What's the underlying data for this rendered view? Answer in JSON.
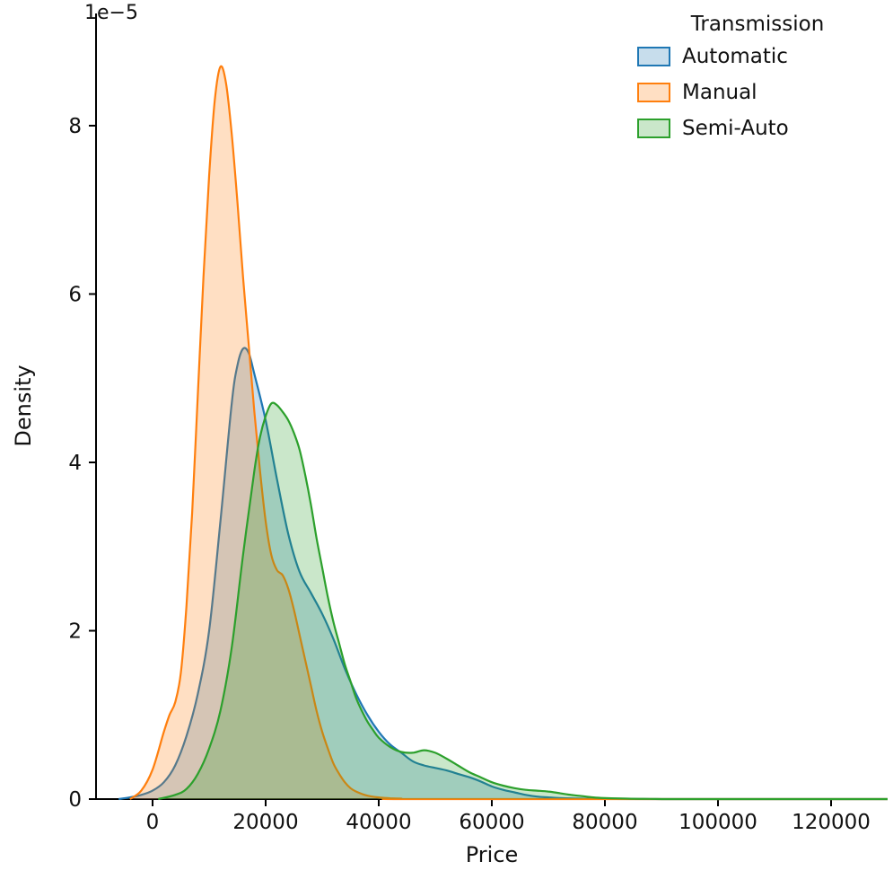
{
  "chart_data": {
    "type": "area",
    "variant": "kde-density",
    "title": "",
    "xlabel": "Price",
    "ylabel": "Density",
    "y_offset_label": "1e−5",
    "y_unit": "1e-5",
    "xlim": [
      -10000,
      130000
    ],
    "ylim": [
      0,
      9.333
    ],
    "x_ticks": [
      0,
      20000,
      40000,
      60000,
      80000,
      100000,
      120000
    ],
    "y_ticks": [
      0,
      2,
      4,
      6,
      8
    ],
    "grid": false,
    "legend": {
      "title": "Transmission",
      "position": "upper right",
      "entries": [
        "Automatic",
        "Manual",
        "Semi-Auto"
      ]
    },
    "series": [
      {
        "name": "Automatic",
        "color": "#1f77b4",
        "fill_alpha": 0.25,
        "points": [
          [
            -6000,
            0
          ],
          [
            -4000,
            0.02
          ],
          [
            -2000,
            0.05
          ],
          [
            0,
            0.1
          ],
          [
            2000,
            0.2
          ],
          [
            4000,
            0.4
          ],
          [
            6000,
            0.75
          ],
          [
            8000,
            1.25
          ],
          [
            10000,
            2.0
          ],
          [
            12000,
            3.3
          ],
          [
            14000,
            4.7
          ],
          [
            15000,
            5.15
          ],
          [
            16000,
            5.35
          ],
          [
            17000,
            5.3
          ],
          [
            18000,
            5.05
          ],
          [
            20000,
            4.5
          ],
          [
            22000,
            3.8
          ],
          [
            24000,
            3.15
          ],
          [
            26000,
            2.7
          ],
          [
            28000,
            2.45
          ],
          [
            30000,
            2.2
          ],
          [
            32000,
            1.9
          ],
          [
            34000,
            1.55
          ],
          [
            36000,
            1.25
          ],
          [
            38000,
            1.0
          ],
          [
            40000,
            0.8
          ],
          [
            42000,
            0.65
          ],
          [
            44000,
            0.55
          ],
          [
            46000,
            0.45
          ],
          [
            48000,
            0.4
          ],
          [
            50000,
            0.37
          ],
          [
            52000,
            0.34
          ],
          [
            54000,
            0.3
          ],
          [
            56000,
            0.26
          ],
          [
            58000,
            0.21
          ],
          [
            60000,
            0.15
          ],
          [
            62000,
            0.11
          ],
          [
            64000,
            0.08
          ],
          [
            66000,
            0.05
          ],
          [
            68000,
            0.03
          ],
          [
            70000,
            0.02
          ],
          [
            72000,
            0.012
          ],
          [
            76000,
            0.005
          ],
          [
            80000,
            0.002
          ],
          [
            90000,
            0
          ],
          [
            130000,
            0
          ]
        ]
      },
      {
        "name": "Manual",
        "color": "#ff7f0e",
        "fill_alpha": 0.25,
        "points": [
          [
            -4000,
            0
          ],
          [
            -2000,
            0.1
          ],
          [
            0,
            0.35
          ],
          [
            2000,
            0.8
          ],
          [
            3000,
            1.0
          ],
          [
            4000,
            1.15
          ],
          [
            5000,
            1.5
          ],
          [
            6000,
            2.3
          ],
          [
            7000,
            3.4
          ],
          [
            8000,
            4.8
          ],
          [
            9000,
            6.2
          ],
          [
            10000,
            7.4
          ],
          [
            11000,
            8.3
          ],
          [
            12000,
            8.7
          ],
          [
            13000,
            8.5
          ],
          [
            14000,
            7.9
          ],
          [
            15000,
            7.1
          ],
          [
            16000,
            6.2
          ],
          [
            17000,
            5.4
          ],
          [
            18000,
            4.6
          ],
          [
            19000,
            3.9
          ],
          [
            20000,
            3.3
          ],
          [
            21000,
            2.9
          ],
          [
            22000,
            2.72
          ],
          [
            23000,
            2.66
          ],
          [
            24000,
            2.5
          ],
          [
            25000,
            2.25
          ],
          [
            26000,
            1.95
          ],
          [
            27000,
            1.65
          ],
          [
            28000,
            1.35
          ],
          [
            29000,
            1.05
          ],
          [
            30000,
            0.8
          ],
          [
            31000,
            0.6
          ],
          [
            32000,
            0.42
          ],
          [
            33000,
            0.3
          ],
          [
            34000,
            0.2
          ],
          [
            35000,
            0.13
          ],
          [
            36000,
            0.09
          ],
          [
            38000,
            0.04
          ],
          [
            40000,
            0.02
          ],
          [
            42000,
            0.01
          ],
          [
            44000,
            0.005
          ],
          [
            48000,
            0
          ],
          [
            130000,
            0
          ]
        ]
      },
      {
        "name": "Semi-Auto",
        "color": "#2ca02c",
        "fill_alpha": 0.25,
        "points": [
          [
            1000,
            0
          ],
          [
            4000,
            0.05
          ],
          [
            6000,
            0.12
          ],
          [
            8000,
            0.3
          ],
          [
            10000,
            0.6
          ],
          [
            12000,
            1.05
          ],
          [
            14000,
            1.8
          ],
          [
            16000,
            2.9
          ],
          [
            18000,
            3.9
          ],
          [
            19000,
            4.3
          ],
          [
            20000,
            4.55
          ],
          [
            21000,
            4.7
          ],
          [
            22000,
            4.68
          ],
          [
            23000,
            4.6
          ],
          [
            24000,
            4.5
          ],
          [
            25000,
            4.35
          ],
          [
            26000,
            4.15
          ],
          [
            27000,
            3.85
          ],
          [
            28000,
            3.5
          ],
          [
            29000,
            3.1
          ],
          [
            30000,
            2.75
          ],
          [
            31000,
            2.4
          ],
          [
            32000,
            2.1
          ],
          [
            33000,
            1.85
          ],
          [
            34000,
            1.6
          ],
          [
            35000,
            1.4
          ],
          [
            36000,
            1.2
          ],
          [
            37000,
            1.05
          ],
          [
            38000,
            0.92
          ],
          [
            39000,
            0.82
          ],
          [
            40000,
            0.73
          ],
          [
            42000,
            0.62
          ],
          [
            44000,
            0.56
          ],
          [
            46000,
            0.55
          ],
          [
            48000,
            0.58
          ],
          [
            50000,
            0.55
          ],
          [
            52000,
            0.48
          ],
          [
            54000,
            0.4
          ],
          [
            56000,
            0.32
          ],
          [
            58000,
            0.26
          ],
          [
            60000,
            0.2
          ],
          [
            62000,
            0.16
          ],
          [
            64000,
            0.13
          ],
          [
            66000,
            0.11
          ],
          [
            68000,
            0.1
          ],
          [
            70000,
            0.09
          ],
          [
            72000,
            0.07
          ],
          [
            74000,
            0.05
          ],
          [
            76000,
            0.035
          ],
          [
            78000,
            0.02
          ],
          [
            80000,
            0.012
          ],
          [
            84000,
            0.005
          ],
          [
            88000,
            0.002
          ],
          [
            95000,
            0
          ],
          [
            130000,
            0
          ]
        ]
      }
    ]
  }
}
